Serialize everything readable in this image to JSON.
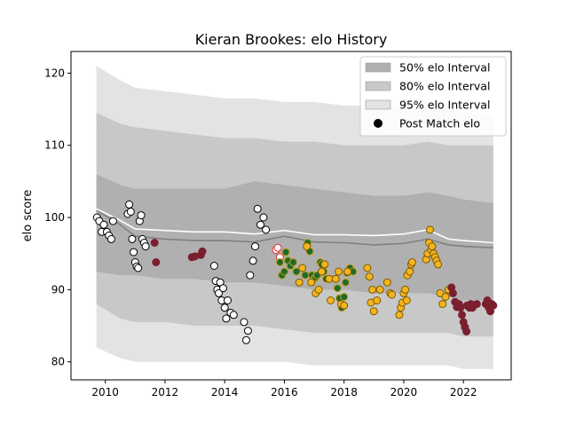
{
  "chart_data": {
    "type": "scatter",
    "title": "Kieran Brookes: elo History",
    "xlabel": "",
    "ylabel": "elo score",
    "xlim": [
      2008.85,
      2023.6
    ],
    "ylim": [
      77.5,
      123
    ],
    "x_ticks": [
      2010,
      2012,
      2014,
      2016,
      2018,
      2020,
      2022
    ],
    "x_tick_labels": [
      "2010",
      "2012",
      "2014",
      "2016",
      "2018",
      "2020",
      "2022"
    ],
    "y_ticks": [
      80,
      90,
      100,
      110,
      120
    ],
    "y_tick_labels": [
      "80",
      "90",
      "100",
      "110",
      "120"
    ],
    "grid": false,
    "legend_position": "top-right",
    "legend": [
      {
        "label": "50% elo Interval",
        "kind": "band",
        "color": "#b0b0b0"
      },
      {
        "label": "80% elo Interval",
        "kind": "band",
        "color": "#c8c8c8"
      },
      {
        "label": "95% elo Interval",
        "kind": "band",
        "color": "#e3e3e3"
      },
      {
        "label": "Post Match elo",
        "kind": "marker",
        "color": "#000000"
      }
    ],
    "intervals": {
      "x": [
        2009.7,
        2010.5,
        2011.0,
        2012.0,
        2013.0,
        2014.0,
        2015.0,
        2016.0,
        2017.0,
        2018.0,
        2019.0,
        2020.0,
        2020.8,
        2021.5,
        2022.0,
        2023.0
      ],
      "band95": {
        "upper": [
          121.0,
          119.0,
          118.0,
          117.5,
          117.0,
          116.5,
          116.5,
          116.0,
          116.0,
          115.5,
          115.5,
          115.5,
          116.0,
          115.0,
          114.5,
          114.0
        ],
        "lower": [
          82.0,
          80.5,
          80.0,
          80.0,
          80.0,
          80.0,
          80.0,
          80.0,
          79.5,
          79.5,
          79.5,
          79.5,
          79.5,
          79.5,
          79.0,
          79.0
        ]
      },
      "band80": {
        "upper": [
          114.5,
          113.0,
          112.5,
          112.0,
          111.5,
          111.0,
          111.0,
          110.5,
          110.5,
          110.0,
          110.0,
          110.0,
          110.5,
          110.0,
          110.0,
          110.0
        ],
        "lower": [
          88.0,
          86.0,
          85.5,
          85.5,
          85.0,
          85.0,
          85.0,
          84.5,
          84.0,
          84.0,
          84.0,
          84.0,
          84.0,
          84.0,
          83.5,
          83.5
        ]
      },
      "band50": {
        "upper": [
          106.0,
          104.5,
          104.0,
          104.0,
          104.0,
          104.0,
          105.0,
          104.5,
          104.0,
          103.5,
          103.0,
          103.0,
          103.5,
          103.0,
          102.5,
          102.0
        ],
        "lower": [
          92.5,
          92.0,
          92.0,
          91.5,
          91.5,
          91.0,
          91.0,
          90.5,
          90.0,
          90.0,
          89.5,
          89.5,
          89.5,
          89.0,
          88.5,
          88.5
        ]
      },
      "upper_median": [
        101.2,
        99.6,
        98.4,
        98.2,
        98.0,
        98.0,
        97.7,
        98.2,
        97.6,
        97.6,
        97.5,
        97.7,
        98.3,
        97.0,
        96.8,
        96.5
      ],
      "lower_median": [
        101.0,
        99.0,
        97.4,
        97.0,
        96.8,
        96.8,
        96.6,
        97.4,
        96.6,
        96.5,
        96.2,
        96.4,
        97.0,
        96.2,
        96.0,
        95.8
      ]
    },
    "series": [
      {
        "face": "#ffffff",
        "edge": "#000000",
        "x": [
          2009.72,
          2009.8,
          2009.88,
          2009.95,
          2010.05,
          2010.12,
          2010.2,
          2010.26,
          2010.75,
          2010.8,
          2010.85,
          2010.9,
          2010.95,
          2011.0,
          2011.05,
          2011.1,
          2011.15,
          2011.2,
          2011.24,
          2011.3,
          2011.35,
          2013.65,
          2013.7,
          2013.75,
          2013.8,
          2013.85,
          2013.9,
          2013.95,
          2014.0,
          2014.05,
          2014.1,
          2014.2,
          2014.3,
          2014.65,
          2014.72,
          2014.78,
          2014.85,
          2014.95,
          2015.02,
          2015.1,
          2015.2,
          2015.3,
          2015.38
        ],
        "y": [
          100.0,
          99.5,
          98.0,
          99.0,
          98.0,
          97.5,
          97.0,
          99.5,
          100.5,
          101.8,
          100.8,
          97.0,
          95.2,
          93.8,
          93.2,
          93.0,
          99.5,
          100.3,
          97.0,
          96.5,
          96.0,
          93.3,
          91.2,
          90.0,
          89.5,
          91.0,
          88.5,
          90.2,
          87.5,
          86.0,
          88.5,
          86.8,
          86.5,
          85.5,
          83.0,
          84.3,
          92.0,
          94.0,
          96.0,
          101.2,
          99.0,
          100.0,
          98.3
        ]
      },
      {
        "face": "#ffffff",
        "edge": "#e03030",
        "x": [
          2015.72,
          2015.78,
          2015.85
        ],
        "y": [
          95.5,
          95.8,
          94.5
        ]
      },
      {
        "face": "#1e6b2c",
        "edge": "#c99a1a",
        "x": [
          2015.85,
          2015.92,
          2016.0,
          2016.05,
          2016.12,
          2016.2,
          2016.3,
          2016.4,
          2016.7,
          2016.78,
          2016.85,
          2016.92,
          2017.0,
          2017.05,
          2017.1,
          2017.2,
          2017.25,
          2017.32,
          2017.4,
          2017.78,
          2017.85,
          2017.92,
          2018.0,
          2018.05,
          2018.1,
          2018.2,
          2018.3
        ],
        "y": [
          93.8,
          92.0,
          92.5,
          95.2,
          94.0,
          93.3,
          93.8,
          92.5,
          92.0,
          96.5,
          95.3,
          92.0,
          91.5,
          91.7,
          92.0,
          93.8,
          93.5,
          92.5,
          91.5,
          90.2,
          88.8,
          87.5,
          89.0,
          91.0,
          92.3,
          93.0,
          92.5
        ]
      },
      {
        "face": "#f5b41f",
        "edge": "#7a5a00",
        "x": [
          2016.5,
          2016.6,
          2016.75,
          2016.9,
          2017.05,
          2017.15,
          2017.25,
          2017.35,
          2017.5,
          2017.55,
          2017.72,
          2017.82,
          2017.9,
          2018.0,
          2018.12,
          2018.78,
          2018.85,
          2018.9,
          2018.95,
          2019.0,
          2019.1,
          2019.2,
          2019.45,
          2019.55,
          2019.6,
          2019.85,
          2019.9,
          2019.95,
          2020.0,
          2020.05,
          2020.1,
          2020.12,
          2020.2,
          2020.25,
          2020.28,
          2020.75,
          2020.8,
          2020.85,
          2020.88,
          2020.92,
          2020.95,
          2021.0,
          2021.05,
          2021.1,
          2021.15,
          2021.22,
          2021.3,
          2021.4,
          2021.5
        ],
        "y": [
          91.0,
          93.0,
          96.0,
          91.0,
          89.5,
          90.0,
          92.5,
          93.5,
          91.5,
          88.5,
          91.5,
          92.5,
          88.0,
          87.8,
          92.5,
          93.0,
          91.8,
          88.2,
          90.0,
          87.0,
          88.5,
          90.0,
          91.0,
          89.5,
          89.3,
          86.5,
          87.5,
          88.2,
          89.5,
          90.0,
          88.5,
          92.0,
          92.5,
          93.5,
          93.8,
          94.2,
          95.0,
          96.5,
          98.3,
          95.5,
          96.0,
          95.0,
          94.5,
          94.0,
          93.5,
          89.5,
          88.0,
          89.0,
          90.0
        ]
      },
      {
        "face": "#7a1f2e",
        "edge": "#7a1f2e",
        "x": [
          2011.65,
          2011.7,
          2012.9,
          2013.0,
          2013.2,
          2013.25,
          2021.6,
          2021.65,
          2021.72,
          2021.78,
          2021.85,
          2021.9,
          2021.95,
          2022.0,
          2022.05,
          2022.1,
          2022.12,
          2022.2,
          2022.25,
          2022.3,
          2022.45,
          2022.75,
          2022.8,
          2022.85,
          2022.9,
          2022.95,
          2023.0
        ],
        "y": [
          96.5,
          93.8,
          94.5,
          94.6,
          94.8,
          95.3,
          90.3,
          89.5,
          88.3,
          87.6,
          88.0,
          87.5,
          86.5,
          85.5,
          84.8,
          84.2,
          87.8,
          87.5,
          88.0,
          87.5,
          88.0,
          88.0,
          88.5,
          87.5,
          87.0,
          88.0,
          87.8
        ]
      }
    ]
  }
}
